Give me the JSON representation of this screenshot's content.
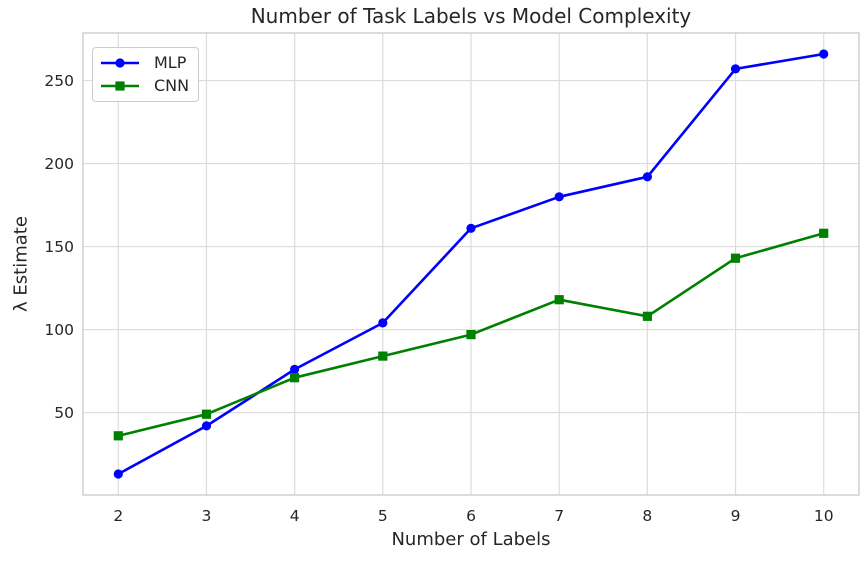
{
  "chart_data": {
    "type": "line",
    "title": "Number of Task Labels vs Model Complexity",
    "xlabel": "Number of Labels",
    "ylabel": "λ Estimate",
    "x": [
      2,
      3,
      4,
      5,
      6,
      7,
      8,
      9,
      10
    ],
    "series": [
      {
        "name": "MLP",
        "color": "#0000FF",
        "marker": "circle",
        "values": [
          13,
          42,
          76,
          104,
          161,
          180,
          192,
          257,
          266
        ]
      },
      {
        "name": "CNN",
        "color": "#008000",
        "marker": "square",
        "values": [
          36,
          49,
          71,
          84,
          97,
          118,
          108,
          143,
          158
        ]
      }
    ],
    "xticks": [
      2,
      3,
      4,
      5,
      6,
      7,
      8,
      9,
      10
    ],
    "yticks": [
      50,
      100,
      150,
      200,
      250
    ],
    "xlim": [
      1.6,
      10.4
    ],
    "ylim": [
      0.35,
      278.65
    ],
    "grid": true,
    "legend_position": "upper left",
    "colors": {
      "grid": "#DCDCDC",
      "spine": "#C8C8C8",
      "text": "#262626",
      "background": "#FFFFFF"
    }
  }
}
